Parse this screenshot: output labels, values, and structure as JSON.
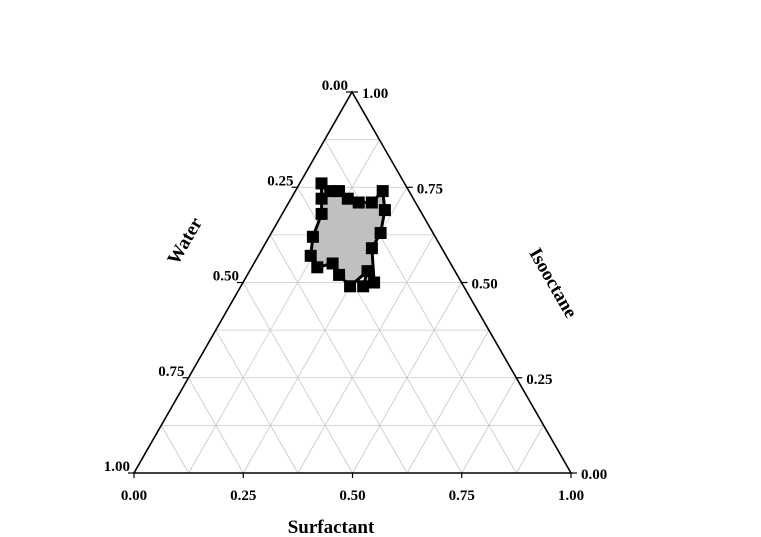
{
  "chart_data": {
    "type": "ternary",
    "axes": {
      "bottom": {
        "label": "Surfactant",
        "ticks": [
          "0.00",
          "0.25",
          "0.50",
          "0.75",
          "1.00"
        ]
      },
      "left": {
        "label": "Water",
        "ticks": [
          "1.00",
          "0.75",
          "0.50",
          "0.25",
          "0.00"
        ]
      },
      "right": {
        "label": "Isooctane",
        "ticks": [
          "0.00",
          "0.25",
          "0.50",
          "0.75",
          "1.00"
        ]
      }
    },
    "grid": true,
    "grid_step": 0.125,
    "region_fill": "#c0c0c0",
    "marker_color": "#000000",
    "boundary_points": [
      {
        "surfactant": 0.05,
        "water": 0.19,
        "isooctane": 0.76
      },
      {
        "surfactant": 0.07,
        "water": 0.21,
        "isooctane": 0.72
      },
      {
        "surfactant": 0.09,
        "water": 0.23,
        "isooctane": 0.68
      },
      {
        "surfactant": 0.1,
        "water": 0.28,
        "isooctane": 0.62
      },
      {
        "surfactant": 0.12,
        "water": 0.31,
        "isooctane": 0.57
      },
      {
        "surfactant": 0.15,
        "water": 0.31,
        "isooctane": 0.54
      },
      {
        "surfactant": 0.18,
        "water": 0.27,
        "isooctane": 0.55
      },
      {
        "surfactant": 0.21,
        "water": 0.27,
        "isooctane": 0.52
      },
      {
        "surfactant": 0.25,
        "water": 0.26,
        "isooctane": 0.49
      },
      {
        "surfactant": 0.27,
        "water": 0.2,
        "isooctane": 0.53
      },
      {
        "surfactant": 0.28,
        "water": 0.23,
        "isooctane": 0.49
      },
      {
        "surfactant": 0.3,
        "water": 0.2,
        "isooctane": 0.5
      },
      {
        "surfactant": 0.25,
        "water": 0.16,
        "isooctane": 0.59
      },
      {
        "surfactant": 0.25,
        "water": 0.12,
        "isooctane": 0.63
      },
      {
        "surfactant": 0.23,
        "water": 0.08,
        "isooctane": 0.69
      },
      {
        "surfactant": 0.2,
        "water": 0.06,
        "isooctane": 0.74
      },
      {
        "surfactant": 0.19,
        "water": 0.1,
        "isooctane": 0.71
      },
      {
        "surfactant": 0.16,
        "water": 0.13,
        "isooctane": 0.71
      },
      {
        "surfactant": 0.13,
        "water": 0.15,
        "isooctane": 0.72
      },
      {
        "surfactant": 0.1,
        "water": 0.16,
        "isooctane": 0.74
      },
      {
        "surfactant": 0.08,
        "water": 0.18,
        "isooctane": 0.74
      }
    ]
  }
}
